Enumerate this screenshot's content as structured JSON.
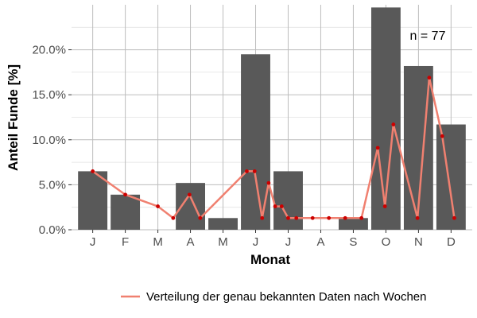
{
  "chart_data": {
    "type": "bar",
    "xlabel": "Monat",
    "ylabel": "Anteil Funde [%]",
    "categories": [
      "J",
      "F",
      "M",
      "A",
      "M",
      "J",
      "J",
      "A",
      "S",
      "O",
      "N",
      "D"
    ],
    "ylim": [
      0,
      25
    ],
    "yticks": [
      0,
      5,
      10,
      15,
      20
    ],
    "ytick_labels": [
      "0.0%",
      "5.0%",
      "10.0%",
      "15.0%",
      "20.0%"
    ],
    "grid": true,
    "annotation": "n = 77",
    "legend_position": "bottom",
    "series": [
      {
        "type": "bar",
        "values": [
          6.5,
          3.9,
          0,
          5.2,
          1.3,
          19.5,
          6.5,
          0,
          1.3,
          24.7,
          18.2,
          11.7
        ],
        "color": "#595959"
      },
      {
        "type": "line",
        "name": "Verteilung der genau bekannten Daten nach Wochen",
        "color": "#f08070",
        "point_color": "#cc0000",
        "x": [
          1,
          2,
          3,
          3.47,
          3.97,
          4.3,
          5.73,
          5.97,
          6.2,
          6.4,
          6.6,
          6.8,
          7.0,
          7.25,
          7.75,
          8.25,
          8.75,
          9.25,
          9.75,
          9.97,
          10.23,
          10.97,
          11.33,
          11.73,
          12.1
        ],
        "y": [
          6.5,
          3.9,
          2.6,
          1.3,
          3.9,
          1.3,
          6.5,
          6.5,
          1.3,
          5.2,
          2.6,
          2.6,
          1.3,
          1.3,
          1.3,
          1.3,
          1.3,
          1.3,
          9.1,
          2.6,
          11.7,
          1.3,
          16.9,
          10.4,
          1.3
        ]
      }
    ]
  }
}
